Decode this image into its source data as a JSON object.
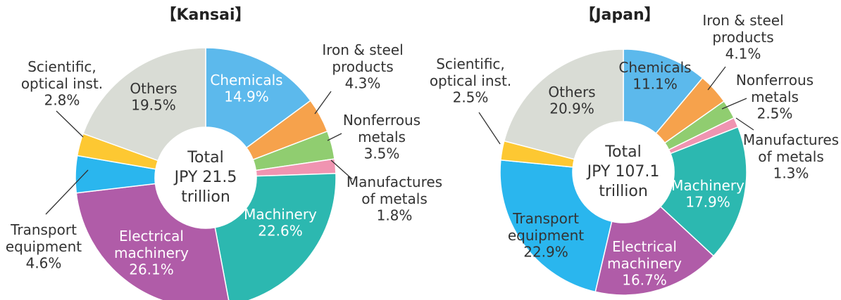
{
  "chart_data": [
    {
      "type": "pie",
      "title": "【Kansai】",
      "categories": [
        "Chemicals",
        "Iron & steel\nproducts",
        "Nonferrous\nmetals",
        "Manufactures\nof metals",
        "Machinery",
        "Electrical\nmachinery",
        "Transport\nequipment",
        "Scientific,\noptical inst.",
        "Others"
      ],
      "values": [
        14.9,
        4.3,
        3.5,
        1.8,
        22.6,
        26.1,
        4.6,
        2.8,
        19.5
      ],
      "value_labels": [
        "14.9%",
        "4.3%",
        "3.5%",
        "1.8%",
        "22.6%",
        "26.1%",
        "4.6%",
        "2.8%",
        "19.5%"
      ],
      "colors": [
        "#5cb9ec",
        "#f6a24c",
        "#90cd70",
        "#f094b1",
        "#2cb8b0",
        "#b05ca8",
        "#2ab6ee",
        "#fdc832",
        "#d9dcd5"
      ],
      "center_label": [
        "Total",
        "JPY 21.5",
        "trillion"
      ]
    },
    {
      "type": "pie",
      "title": "【Japan】",
      "categories": [
        "Chemicals",
        "Iron & steel\nproducts",
        "Nonferrous\nmetals",
        "Manufactures\nof metals",
        "Machinery",
        "Electrical\nmachinery",
        "Transport\nequipment",
        "Scientific,\noptical inst.",
        "Others"
      ],
      "values": [
        11.1,
        4.1,
        2.5,
        1.3,
        17.9,
        16.7,
        22.9,
        2.5,
        20.9
      ],
      "value_labels": [
        "11.1%",
        "4.1%",
        "2.5%",
        "1.3%",
        "17.9%",
        "16.7%",
        "22.9%",
        "2.5%",
        "20.9%"
      ],
      "colors": [
        "#5cb9ec",
        "#f6a24c",
        "#90cd70",
        "#f094b1",
        "#2cb8b0",
        "#b05ca8",
        "#2ab6ee",
        "#fdc832",
        "#d9dcd5"
      ],
      "center_label": [
        "Total",
        "JPY 107.1",
        "trillion"
      ]
    }
  ]
}
